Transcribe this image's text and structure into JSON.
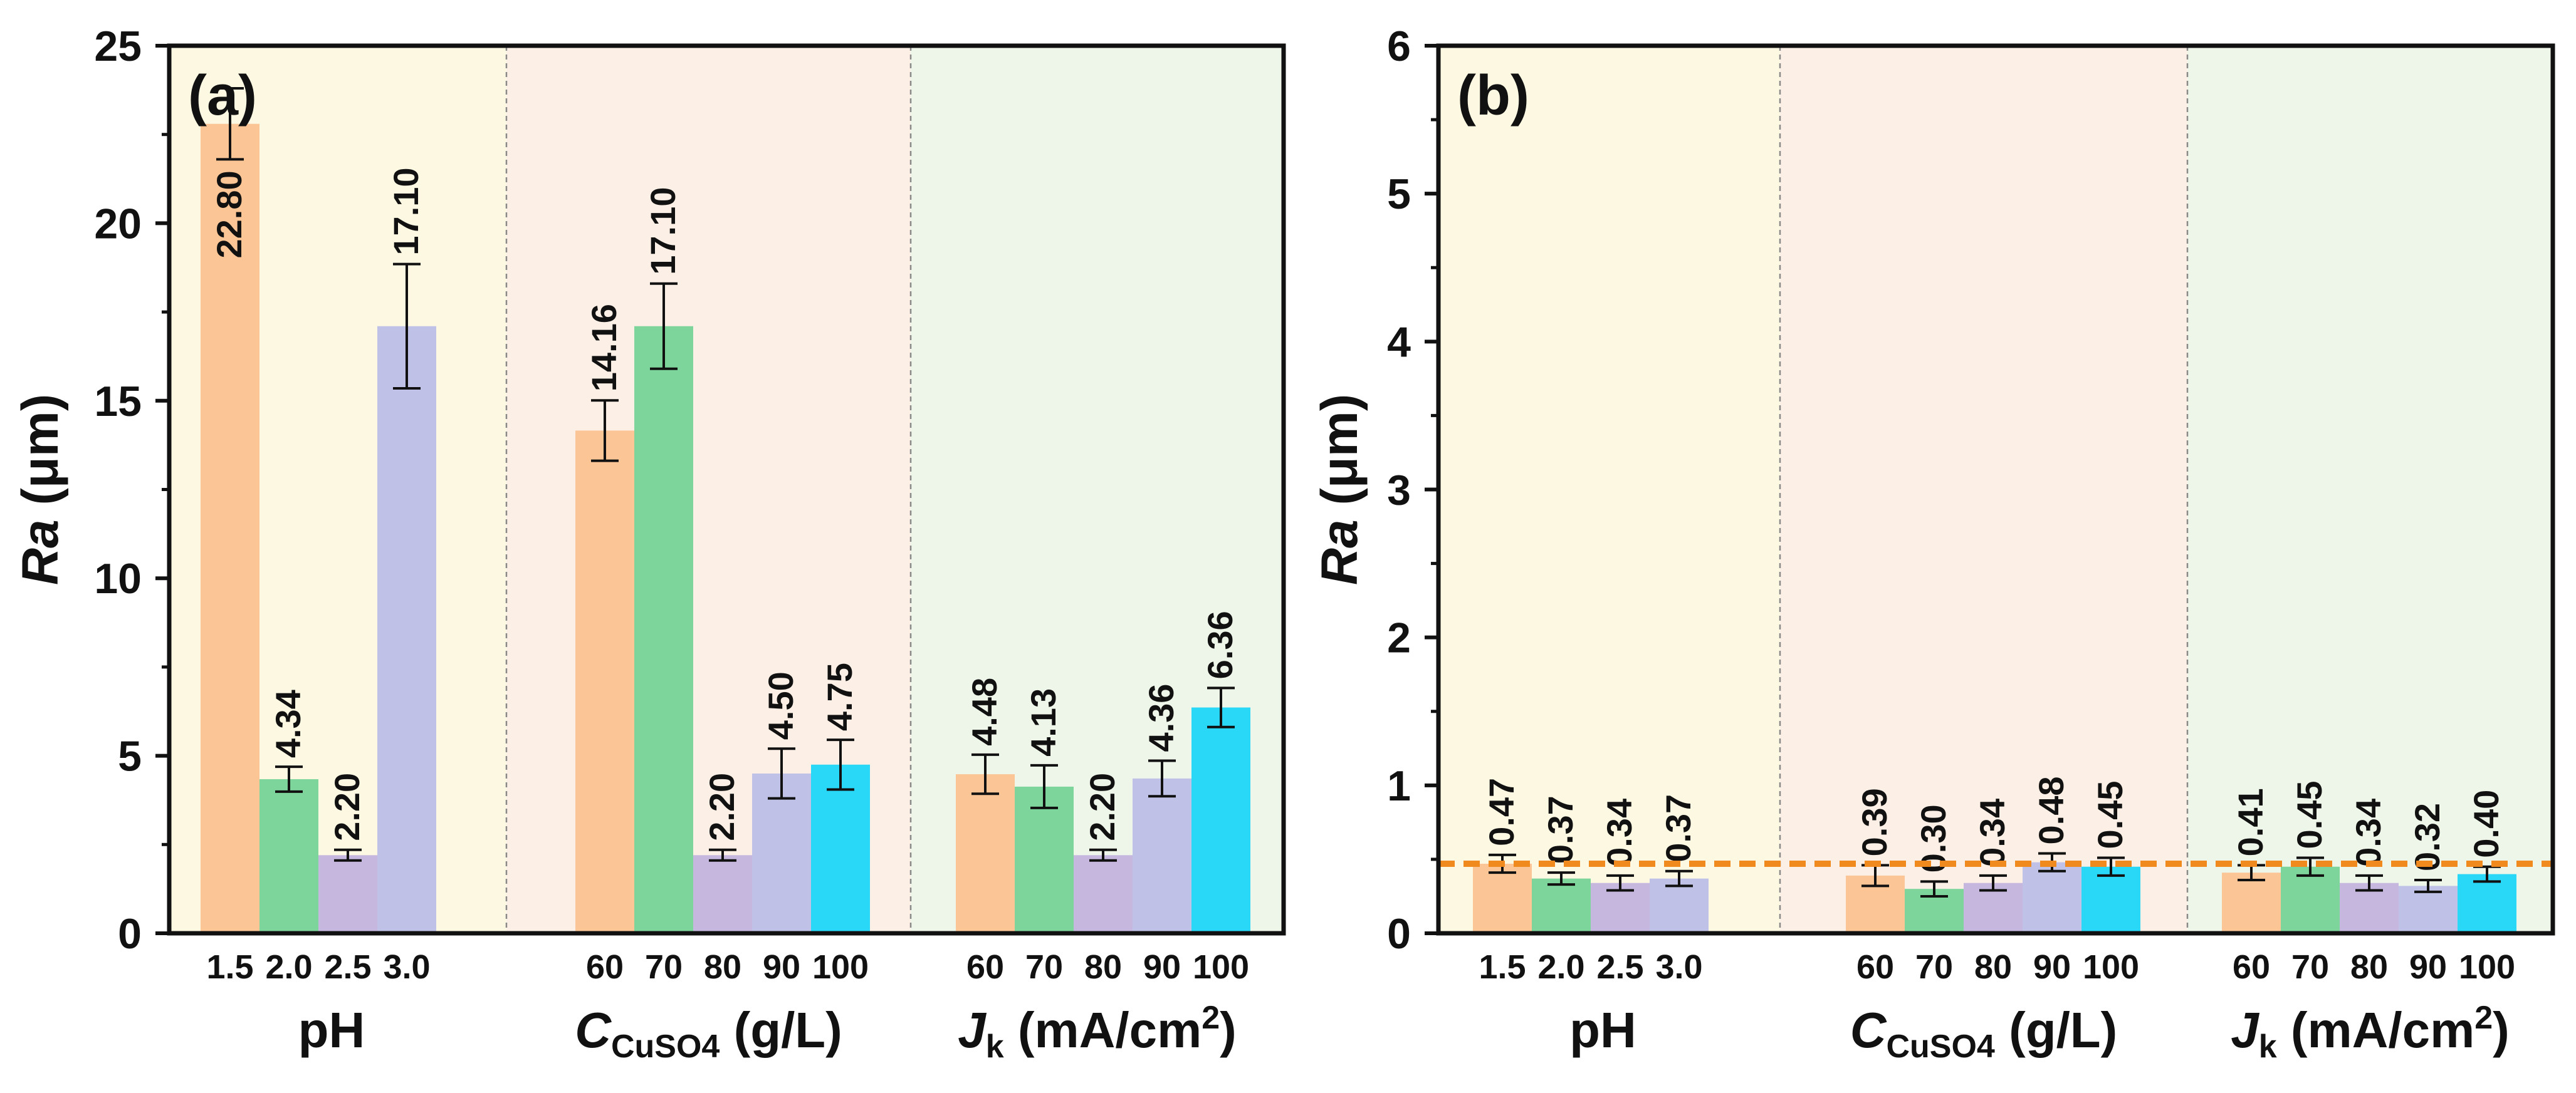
{
  "colors": {
    "ph_bg": "#fdf8e2",
    "cuso4_bg": "#fcefe5",
    "jk_bg": "#eef5e9",
    "orange": "#fbc595",
    "green": "#7dd59b",
    "purple": "#c6b7df",
    "lavender": "#bfc2e6",
    "cyan": "#29d7f7",
    "ref_line": "#f08a1e"
  },
  "chart_data": [
    {
      "type": "bar",
      "panel_label": "(a)",
      "ylabel": "Ra (μm)",
      "ylabel_italic": "Ra",
      "ylabel_unit": " (μm)",
      "ylim": [
        0,
        25
      ],
      "yticks": [
        0,
        5,
        10,
        15,
        20,
        25
      ],
      "ytick_labels": [
        "0",
        "5",
        "10",
        "15",
        "20",
        "25"
      ],
      "groups": [
        {
          "name": "pH",
          "xlabel": "pH",
          "categories": [
            "1.5",
            "2.0",
            "2.5",
            "3.0"
          ],
          "values": [
            22.8,
            4.34,
            2.2,
            17.1
          ],
          "errors": [
            1.0,
            0.35,
            0.15,
            1.75
          ],
          "value_labels": [
            "22.80",
            "4.34",
            "2.20",
            "17.10"
          ],
          "label_inside": [
            true,
            false,
            false,
            false
          ]
        },
        {
          "name": "CuSO4",
          "xlabel": "C_CuSO4 (g/L)",
          "xlabel_main": "C",
          "xlabel_sub": "CuSO4",
          "xlabel_tail": " (g/L)",
          "categories": [
            "60",
            "70",
            "80",
            "90",
            "100"
          ],
          "values": [
            14.16,
            17.1,
            2.2,
            4.5,
            4.75
          ],
          "errors": [
            0.85,
            1.2,
            0.15,
            0.7,
            0.7
          ],
          "value_labels": [
            "14.16",
            "17.10",
            "2.20",
            "4.50",
            "4.75"
          ],
          "label_inside": [
            false,
            false,
            false,
            false,
            false
          ]
        },
        {
          "name": "Jk",
          "xlabel": "J_k (mA/cm2)",
          "xlabel_main": "J",
          "xlabel_sub": "k",
          "xlabel_tail": " (mA/cm",
          "xlabel_sup": "2",
          "xlabel_close": ")",
          "categories": [
            "60",
            "70",
            "80",
            "90",
            "100"
          ],
          "values": [
            4.48,
            4.13,
            2.2,
            4.36,
            6.36
          ],
          "errors": [
            0.55,
            0.6,
            0.15,
            0.5,
            0.55
          ],
          "value_labels": [
            "4.48",
            "4.13",
            "2.20",
            "4.36",
            "6.36"
          ],
          "label_inside": [
            false,
            false,
            false,
            false,
            false
          ]
        }
      ]
    },
    {
      "type": "bar",
      "panel_label": "(b)",
      "ylabel": "Ra (μm)",
      "ylabel_italic": "Ra",
      "ylabel_unit": " (μm)",
      "ylim": [
        0,
        6
      ],
      "yticks": [
        0,
        1,
        2,
        3,
        4,
        5,
        6
      ],
      "ytick_labels": [
        "0",
        "1",
        "2",
        "3",
        "4",
        "5",
        "6"
      ],
      "reference_line": 0.47,
      "groups": [
        {
          "name": "pH",
          "xlabel": "pH",
          "categories": [
            "1.5",
            "2.0",
            "2.5",
            "3.0"
          ],
          "values": [
            0.47,
            0.37,
            0.34,
            0.37
          ],
          "errors": [
            0.06,
            0.04,
            0.05,
            0.05
          ],
          "value_labels": [
            "0.47",
            "0.37",
            "0.34",
            "0.37"
          ],
          "label_inside": [
            false,
            false,
            false,
            false
          ]
        },
        {
          "name": "CuSO4",
          "xlabel": "C_CuSO4 (g/L)",
          "xlabel_main": "C",
          "xlabel_sub": "CuSO4",
          "xlabel_tail": " (g/L)",
          "categories": [
            "60",
            "70",
            "80",
            "90",
            "100"
          ],
          "values": [
            0.39,
            0.3,
            0.34,
            0.48,
            0.45
          ],
          "errors": [
            0.07,
            0.05,
            0.05,
            0.06,
            0.06
          ],
          "value_labels": [
            "0.39",
            "0.30",
            "0.34",
            "0.48",
            "0.45"
          ],
          "label_inside": [
            false,
            false,
            false,
            false,
            false
          ]
        },
        {
          "name": "Jk",
          "xlabel": "J_k (mA/cm2)",
          "xlabel_main": "J",
          "xlabel_sub": "k",
          "xlabel_tail": " (mA/cm",
          "xlabel_sup": "2",
          "xlabel_close": ")",
          "categories": [
            "60",
            "70",
            "80",
            "90",
            "100"
          ],
          "values": [
            0.41,
            0.45,
            0.34,
            0.32,
            0.4
          ],
          "errors": [
            0.05,
            0.06,
            0.05,
            0.04,
            0.05
          ],
          "value_labels": [
            "0.41",
            "0.45",
            "0.34",
            "0.32",
            "0.40"
          ],
          "label_inside": [
            false,
            false,
            false,
            false,
            false
          ]
        }
      ]
    }
  ]
}
